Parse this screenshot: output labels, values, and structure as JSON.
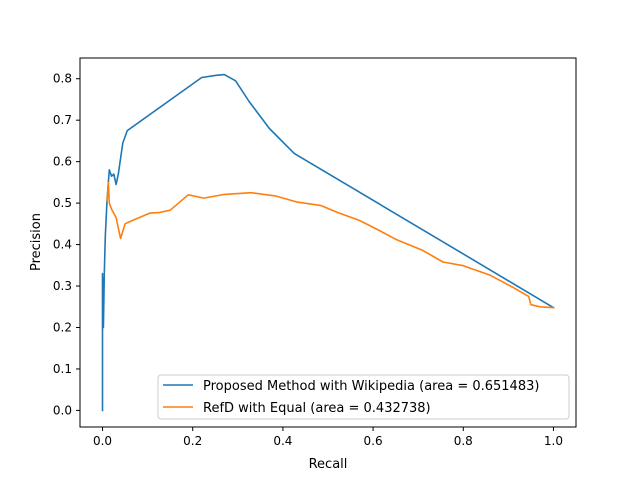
{
  "chart_data": {
    "type": "line",
    "title": "",
    "xlabel": "Recall",
    "ylabel": "Precision",
    "xlim": [
      -0.05,
      1.05
    ],
    "ylim": [
      -0.04,
      0.85
    ],
    "xticks": [
      0.0,
      0.2,
      0.4,
      0.6,
      0.8,
      1.0
    ],
    "xtick_labels": [
      "0.0",
      "0.2",
      "0.4",
      "0.6",
      "0.8",
      "1.0"
    ],
    "yticks": [
      0.0,
      0.1,
      0.2,
      0.3,
      0.4,
      0.5,
      0.6,
      0.7,
      0.8
    ],
    "ytick_labels": [
      "0.0",
      "0.1",
      "0.2",
      "0.3",
      "0.4",
      "0.5",
      "0.6",
      "0.7",
      "0.8"
    ],
    "grid": false,
    "legend_position": "lower-right",
    "series": [
      {
        "name": "Proposed Method with Wikipedia (area = 0.651483)",
        "color": "#1f77b4",
        "x": [
          0.0,
          0.0,
          0.002,
          0.004,
          0.006,
          0.01,
          0.015,
          0.02,
          0.025,
          0.03,
          0.035,
          0.045,
          0.055,
          0.22,
          0.25,
          0.27,
          0.295,
          0.325,
          0.37,
          0.425,
          1.0
        ],
        "y": [
          0.0,
          0.33,
          0.2,
          0.33,
          0.42,
          0.51,
          0.58,
          0.565,
          0.57,
          0.545,
          0.57,
          0.645,
          0.675,
          0.803,
          0.808,
          0.81,
          0.795,
          0.745,
          0.68,
          0.62,
          0.248
        ]
      },
      {
        "name": "RefD with Equal (area = 0.432738)",
        "color": "#ff7f0e",
        "x": [
          0.01,
          0.013,
          0.015,
          0.02,
          0.03,
          0.035,
          0.04,
          0.05,
          0.07,
          0.105,
          0.125,
          0.15,
          0.19,
          0.225,
          0.27,
          0.33,
          0.385,
          0.43,
          0.485,
          0.52,
          0.57,
          0.61,
          0.65,
          0.71,
          0.755,
          0.8,
          0.86,
          0.91,
          0.94,
          0.945,
          0.95,
          0.97,
          1.0
        ],
        "y": [
          0.505,
          0.55,
          0.5,
          0.485,
          0.465,
          0.44,
          0.415,
          0.45,
          0.46,
          0.476,
          0.477,
          0.483,
          0.52,
          0.512,
          0.521,
          0.525,
          0.517,
          0.503,
          0.494,
          0.478,
          0.458,
          0.436,
          0.413,
          0.386,
          0.358,
          0.349,
          0.326,
          0.297,
          0.278,
          0.275,
          0.255,
          0.25,
          0.248
        ]
      }
    ]
  }
}
